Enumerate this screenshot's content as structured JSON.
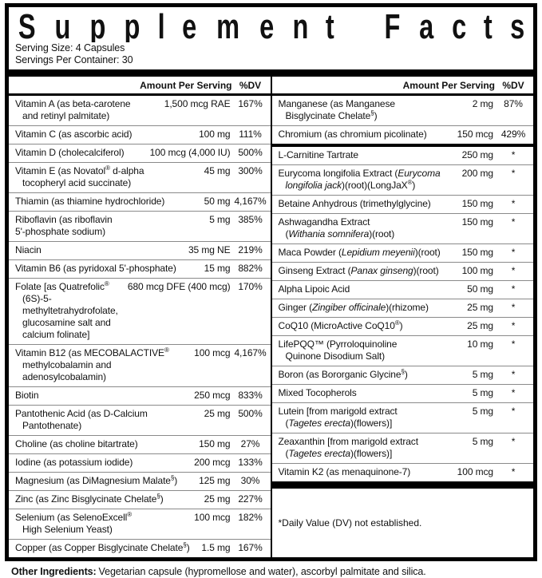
{
  "header": {
    "title": "Supplement Facts",
    "serving_size": "Serving Size: 4 Capsules",
    "servings_per_container": "Servings Per Container: 30"
  },
  "columns": {
    "amount_label": "Amount Per Serving",
    "dv_label": "%DV"
  },
  "left_rows": [
    {
      "name": [
        {
          "t": "Vitamin A (as beta-carotene\nand retinyl palmitate)",
          "s": ""
        }
      ],
      "amount": "1,500 mcg RAE",
      "dv": "167%"
    },
    {
      "name": [
        {
          "t": "Vitamin C (as ascorbic acid)",
          "s": ""
        }
      ],
      "amount": "100 mg",
      "dv": "111%"
    },
    {
      "name": [
        {
          "t": "Vitamin D (cholecalciferol)",
          "s": ""
        }
      ],
      "amount": "100 mcg (4,000 IU)",
      "dv": "500%"
    },
    {
      "name": [
        {
          "t": "Vitamin E (as Novatol",
          "s": ""
        },
        {
          "t": "®",
          "s": "sup"
        },
        {
          "t": " d-alpha\ntocopheryl acid succinate)",
          "s": ""
        }
      ],
      "amount": "45 mg",
      "dv": "300%"
    },
    {
      "name": [
        {
          "t": "Thiamin (as thiamine hydrochloride)",
          "s": ""
        }
      ],
      "amount": "50 mg",
      "dv": "4,167%"
    },
    {
      "flush": true,
      "name": [
        {
          "t": "Riboflavin (as riboflavin\n5'-phosphate sodium)",
          "s": ""
        }
      ],
      "amount": "5 mg",
      "dv": "385%"
    },
    {
      "name": [
        {
          "t": "Niacin",
          "s": ""
        }
      ],
      "amount": "35 mg NE",
      "dv": "219%"
    },
    {
      "name": [
        {
          "t": "Vitamin B6 (as pyridoxal 5'-phosphate)",
          "s": ""
        }
      ],
      "amount": "15 mg",
      "dv": "882%"
    },
    {
      "name": [
        {
          "t": "Folate [as Quatrefolic",
          "s": ""
        },
        {
          "t": "®",
          "s": "sup"
        },
        {
          "t": "\n(6S)-5-methyltetrahydrofolate,\nglucosamine salt and calcium folinate]",
          "s": ""
        }
      ],
      "amount": "680 mcg DFE (400 mcg)",
      "dv": "170%"
    },
    {
      "name": [
        {
          "t": "Vitamin B12 (as MECOBALACTIVE",
          "s": ""
        },
        {
          "t": "®",
          "s": "sup"
        },
        {
          "t": "\nmethylcobalamin and adenosylcobalamin)",
          "s": ""
        }
      ],
      "amount": "100 mcg",
      "dv": "4,167%"
    },
    {
      "name": [
        {
          "t": "Biotin",
          "s": ""
        }
      ],
      "amount": "250 mcg",
      "dv": "833%"
    },
    {
      "name": [
        {
          "t": "Pantothenic Acid (as D-Calcium Pantothenate)",
          "s": ""
        }
      ],
      "amount": "25 mg",
      "dv": "500%"
    },
    {
      "name": [
        {
          "t": "Choline (as choline bitartrate)",
          "s": ""
        }
      ],
      "amount": "150 mg",
      "dv": "27%"
    },
    {
      "name": [
        {
          "t": "Iodine (as potassium iodide)",
          "s": ""
        }
      ],
      "amount": "200 mcg",
      "dv": "133%"
    },
    {
      "name": [
        {
          "t": "Magnesium (as DiMagnesium Malate",
          "s": ""
        },
        {
          "t": "§",
          "s": "sup"
        },
        {
          "t": ")",
          "s": ""
        }
      ],
      "amount": "125 mg",
      "dv": "30%"
    },
    {
      "name": [
        {
          "t": "Zinc (as Zinc Bisglycinate Chelate",
          "s": ""
        },
        {
          "t": "§",
          "s": "sup"
        },
        {
          "t": ")",
          "s": ""
        }
      ],
      "amount": "25 mg",
      "dv": "227%"
    },
    {
      "name": [
        {
          "t": "Selenium (as SelenoExcell",
          "s": ""
        },
        {
          "t": "®",
          "s": "sup"
        },
        {
          "t": "\nHigh Selenium Yeast)",
          "s": ""
        }
      ],
      "amount": "100 mcg",
      "dv": "182%"
    },
    {
      "name": [
        {
          "t": "Copper (as Copper Bisglycinate Chelate",
          "s": ""
        },
        {
          "t": "§",
          "s": "sup"
        },
        {
          "t": ")",
          "s": ""
        }
      ],
      "amount": "1.5 mg",
      "dv": "167%"
    }
  ],
  "right_rows": [
    {
      "name": [
        {
          "t": "Manganese (as Manganese\nBisglycinate Chelate",
          "s": ""
        },
        {
          "t": "§",
          "s": "sup"
        },
        {
          "t": ")",
          "s": ""
        }
      ],
      "amount": "2 mg",
      "dv": "87%"
    },
    {
      "divider_below": true,
      "name": [
        {
          "t": "Chromium (as chromium picolinate)",
          "s": ""
        }
      ],
      "amount": "150 mcg",
      "dv": "429%"
    },
    {
      "name": [
        {
          "t": "L-Carnitine Tartrate",
          "s": ""
        }
      ],
      "amount": "250 mg",
      "dv": "*"
    },
    {
      "name": [
        {
          "t": "Eurycoma longifolia Extract (",
          "s": ""
        },
        {
          "t": "Eurycoma\nlongifolia jack",
          "s": "i"
        },
        {
          "t": ")(root)(LongJaX",
          "s": ""
        },
        {
          "t": "®",
          "s": "sup"
        },
        {
          "t": ")",
          "s": ""
        }
      ],
      "amount": "200 mg",
      "dv": "*"
    },
    {
      "name": [
        {
          "t": "Betaine Anhydrous (trimethylglycine)",
          "s": ""
        }
      ],
      "amount": "150 mg",
      "dv": "*"
    },
    {
      "name": [
        {
          "t": "Ashwagandha Extract\n(",
          "s": ""
        },
        {
          "t": "Withania somnifera",
          "s": "i"
        },
        {
          "t": ")(root)",
          "s": ""
        }
      ],
      "amount": "150 mg",
      "dv": "*"
    },
    {
      "name": [
        {
          "t": "Maca Powder (",
          "s": ""
        },
        {
          "t": "Lepidium meyenii",
          "s": "i"
        },
        {
          "t": ")(root)",
          "s": ""
        }
      ],
      "amount": "150 mg",
      "dv": "*"
    },
    {
      "name": [
        {
          "t": "Ginseng Extract (",
          "s": ""
        },
        {
          "t": "Panax ginseng",
          "s": "i"
        },
        {
          "t": ")(root)",
          "s": ""
        }
      ],
      "amount": "100 mg",
      "dv": "*"
    },
    {
      "name": [
        {
          "t": "Alpha Lipoic Acid",
          "s": ""
        }
      ],
      "amount": "50 mg",
      "dv": "*"
    },
    {
      "name": [
        {
          "t": "Ginger (",
          "s": ""
        },
        {
          "t": "Zingiber officinale",
          "s": "i"
        },
        {
          "t": ")(rhizome)",
          "s": ""
        }
      ],
      "amount": "25 mg",
      "dv": "*"
    },
    {
      "name": [
        {
          "t": "CoQ10 (MicroActive CoQ10",
          "s": ""
        },
        {
          "t": "®",
          "s": "sup"
        },
        {
          "t": ")",
          "s": ""
        }
      ],
      "amount": "25 mg",
      "dv": "*"
    },
    {
      "name": [
        {
          "t": "LifePQQ™ (Pyrroloquinoline\nQuinone Disodium Salt)",
          "s": ""
        }
      ],
      "amount": "10 mg",
      "dv": "*"
    },
    {
      "name": [
        {
          "t": "Boron (as Bororganic Glycine",
          "s": ""
        },
        {
          "t": "§",
          "s": "sup"
        },
        {
          "t": ")",
          "s": ""
        }
      ],
      "amount": "5 mg",
      "dv": "*"
    },
    {
      "name": [
        {
          "t": "Mixed Tocopherols",
          "s": ""
        }
      ],
      "amount": "5 mg",
      "dv": "*"
    },
    {
      "name": [
        {
          "t": "Lutein [from marigold extract\n(",
          "s": ""
        },
        {
          "t": "Tagetes erecta",
          "s": "i"
        },
        {
          "t": ")(flowers)]",
          "s": ""
        }
      ],
      "amount": "5 mg",
      "dv": "*"
    },
    {
      "name": [
        {
          "t": "Zeaxanthin [from marigold extract\n(",
          "s": ""
        },
        {
          "t": "Tagetes erecta",
          "s": "i"
        },
        {
          "t": ")(flowers)]",
          "s": ""
        }
      ],
      "amount": "5 mg",
      "dv": "*"
    },
    {
      "name": [
        {
          "t": "Vitamin K2 (as menaquinone-7)",
          "s": ""
        }
      ],
      "amount": "100 mcg",
      "dv": "*"
    }
  ],
  "footnote": "*Daily Value (DV) not established.",
  "other_ingredients": {
    "label": "Other Ingredients:",
    "text": "Vegetarian capsule (hypromellose and water), ascorbyl palmitate and silica."
  },
  "colors": {
    "frame": "#000000",
    "separator": "#8a8a8a",
    "text": "#111111",
    "background": "#ffffff"
  }
}
